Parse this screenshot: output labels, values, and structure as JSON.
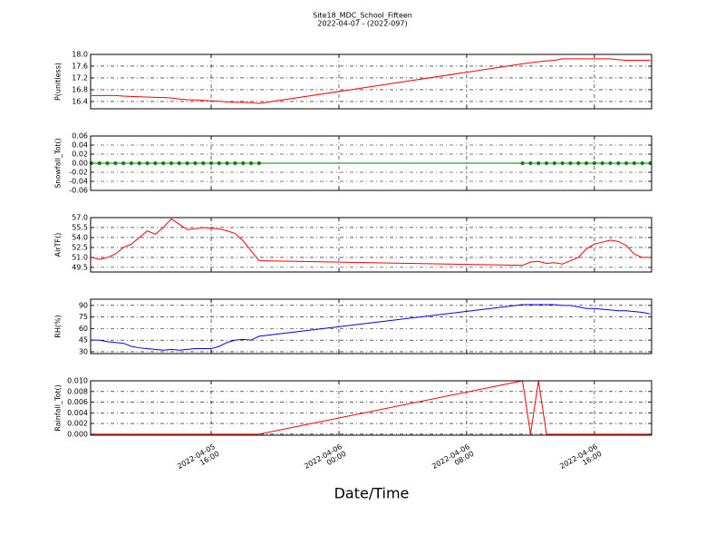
{
  "title": "Site18_MDC_School_Fifteen",
  "subtitle": "2022-04-07 - (2022-097)",
  "chart_data": [
    {
      "type": "line",
      "ylabel": "P(unitless)",
      "color": "#ff0000",
      "grid": true,
      "x": [
        "2022-04-05 08:30",
        "2022-04-05 09:00",
        "2022-04-05 09:30",
        "2022-04-05 10:00",
        "2022-04-05 10:30",
        "2022-04-05 11:00",
        "2022-04-05 11:30",
        "2022-04-05 12:00",
        "2022-04-05 12:30",
        "2022-04-05 13:00",
        "2022-04-05 13:30",
        "2022-04-05 14:00",
        "2022-04-05 14:30",
        "2022-04-05 15:00",
        "2022-04-05 15:30",
        "2022-04-05 16:00",
        "2022-04-05 16:30",
        "2022-04-05 17:00",
        "2022-04-05 17:30",
        "2022-04-05 18:00",
        "2022-04-05 18:30",
        "2022-04-05 19:00",
        "2022-04-06 11:30",
        "2022-04-06 12:00",
        "2022-04-06 12:30",
        "2022-04-06 13:00",
        "2022-04-06 13:30",
        "2022-04-06 14:00",
        "2022-04-06 14:30",
        "2022-04-06 15:00",
        "2022-04-06 15:30",
        "2022-04-06 16:00",
        "2022-04-06 16:30",
        "2022-04-06 17:00",
        "2022-04-06 17:30",
        "2022-04-06 18:00",
        "2022-04-06 18:30",
        "2022-04-06 19:00",
        "2022-04-06 19:30"
      ],
      "values": [
        16.6,
        16.6,
        16.6,
        16.6,
        16.58,
        16.57,
        16.56,
        16.55,
        16.54,
        16.53,
        16.52,
        16.48,
        16.46,
        16.45,
        16.44,
        16.42,
        16.41,
        16.38,
        16.37,
        16.37,
        16.36,
        16.33,
        17.68,
        17.72,
        17.75,
        17.78,
        17.8,
        17.85,
        17.85,
        17.85,
        17.85,
        17.85,
        17.85,
        17.85,
        17.82,
        17.8,
        17.8,
        17.8,
        17.8
      ],
      "ylim": [
        16.15,
        18.0
      ],
      "yticks": [
        16.4,
        16.8,
        17.2,
        17.6,
        {
          "value": 18.0,
          "label": "18.0"
        }
      ]
    },
    {
      "type": "line",
      "ylabel": "Snowfall_Tot()",
      "color": "#008000",
      "markers": true,
      "grid": true,
      "x": [
        "2022-04-05 08:30",
        "2022-04-05 09:00",
        "2022-04-05 09:30",
        "2022-04-05 10:00",
        "2022-04-05 10:30",
        "2022-04-05 11:00",
        "2022-04-05 11:30",
        "2022-04-05 12:00",
        "2022-04-05 12:30",
        "2022-04-05 13:00",
        "2022-04-05 13:30",
        "2022-04-05 14:00",
        "2022-04-05 14:30",
        "2022-04-05 15:00",
        "2022-04-05 15:30",
        "2022-04-05 16:00",
        "2022-04-05 16:30",
        "2022-04-05 17:00",
        "2022-04-05 17:30",
        "2022-04-05 18:00",
        "2022-04-05 18:30",
        "2022-04-05 19:00",
        "2022-04-06 11:30",
        "2022-04-06 12:00",
        "2022-04-06 12:30",
        "2022-04-06 13:00",
        "2022-04-06 13:30",
        "2022-04-06 14:00",
        "2022-04-06 14:30",
        "2022-04-06 15:00",
        "2022-04-06 15:30",
        "2022-04-06 16:00",
        "2022-04-06 16:30",
        "2022-04-06 17:00",
        "2022-04-06 17:30",
        "2022-04-06 18:00",
        "2022-04-06 18:30",
        "2022-04-06 19:00",
        "2022-04-06 19:30"
      ],
      "values": [
        0,
        0,
        0,
        0,
        0,
        0,
        0,
        0,
        0,
        0,
        0,
        0,
        0,
        0,
        0,
        0,
        0,
        0,
        0,
        0,
        0,
        0,
        0,
        0,
        0,
        0,
        0,
        0,
        0,
        0,
        0,
        0,
        0,
        0,
        0,
        0,
        0,
        0,
        0
      ],
      "ylim": [
        -0.06,
        0.06
      ],
      "yticks": [
        {
          "value": -0.06,
          "label": "-0.06"
        },
        {
          "value": -0.04,
          "label": "-0.04"
        },
        {
          "value": -0.02,
          "label": "-0.02"
        },
        {
          "value": 0,
          "label": "0.00"
        },
        0.02,
        0.04,
        0.06
      ]
    },
    {
      "type": "line",
      "ylabel": "AirTF()",
      "color": "#ff0000",
      "grid": true,
      "x": [
        "2022-04-05 08:30",
        "2022-04-05 09:00",
        "2022-04-05 09:30",
        "2022-04-05 10:00",
        "2022-04-05 10:30",
        "2022-04-05 11:00",
        "2022-04-05 11:30",
        "2022-04-05 12:00",
        "2022-04-05 12:30",
        "2022-04-05 13:00",
        "2022-04-05 13:30",
        "2022-04-05 14:00",
        "2022-04-05 14:30",
        "2022-04-05 15:00",
        "2022-04-05 15:30",
        "2022-04-05 16:00",
        "2022-04-05 16:30",
        "2022-04-05 17:00",
        "2022-04-05 17:30",
        "2022-04-05 18:00",
        "2022-04-05 18:30",
        "2022-04-05 19:00",
        "2022-04-06 11:30",
        "2022-04-06 12:00",
        "2022-04-06 12:30",
        "2022-04-06 13:00",
        "2022-04-06 13:30",
        "2022-04-06 14:00",
        "2022-04-06 14:30",
        "2022-04-06 15:00",
        "2022-04-06 15:30",
        "2022-04-06 16:00",
        "2022-04-06 16:30",
        "2022-04-06 17:00",
        "2022-04-06 17:30",
        "2022-04-06 18:00",
        "2022-04-06 18:30",
        "2022-04-06 19:00",
        "2022-04-06 19:30"
      ],
      "values": [
        51.0,
        50.7,
        51.0,
        51.5,
        52.5,
        53.0,
        54.0,
        55.0,
        54.5,
        55.5,
        56.8,
        56.0,
        55.2,
        55.3,
        55.5,
        55.4,
        55.3,
        55.0,
        54.6,
        53.5,
        52.0,
        50.5,
        49.8,
        50.3,
        50.4,
        50.1,
        50.2,
        50.0,
        50.5,
        51.0,
        52.3,
        53.0,
        53.3,
        53.6,
        53.4,
        52.8,
        51.5,
        51.0,
        51.0
      ],
      "ylim": [
        48.8,
        57.0
      ],
      "yticks": [
        49.5,
        {
          "value": 51.0,
          "label": "51.0"
        },
        52.5,
        {
          "value": 54.0,
          "label": "54.0"
        },
        55.5,
        {
          "value": 57.0,
          "label": "57.0"
        }
      ]
    },
    {
      "type": "line",
      "ylabel": "RH(%)",
      "color": "#0000ff",
      "grid": true,
      "x": [
        "2022-04-05 08:30",
        "2022-04-05 09:00",
        "2022-04-05 09:30",
        "2022-04-05 10:00",
        "2022-04-05 10:30",
        "2022-04-05 11:00",
        "2022-04-05 11:30",
        "2022-04-05 12:00",
        "2022-04-05 12:30",
        "2022-04-05 13:00",
        "2022-04-05 13:30",
        "2022-04-05 14:00",
        "2022-04-05 14:30",
        "2022-04-05 15:00",
        "2022-04-05 15:30",
        "2022-04-05 16:00",
        "2022-04-05 16:30",
        "2022-04-05 17:00",
        "2022-04-05 17:30",
        "2022-04-05 18:00",
        "2022-04-05 18:30",
        "2022-04-05 19:00",
        "2022-04-06 11:30",
        "2022-04-06 12:00",
        "2022-04-06 12:30",
        "2022-04-06 13:00",
        "2022-04-06 13:30",
        "2022-04-06 14:00",
        "2022-04-06 14:30",
        "2022-04-06 15:00",
        "2022-04-06 15:30",
        "2022-04-06 16:00",
        "2022-04-06 16:30",
        "2022-04-06 17:00",
        "2022-04-06 17:30",
        "2022-04-06 18:00",
        "2022-04-06 18:30",
        "2022-04-06 19:00",
        "2022-04-06 19:30"
      ],
      "values": [
        45,
        45,
        43,
        42,
        41,
        37,
        35,
        34,
        33,
        32,
        33,
        32,
        33,
        34,
        34,
        34,
        37,
        42,
        45,
        46,
        45,
        50,
        91,
        91,
        91,
        91,
        91,
        90,
        90,
        88,
        86,
        86,
        85,
        84,
        83,
        83,
        82,
        81,
        79
      ],
      "ylim": [
        27.6,
        98
      ],
      "yticks": [
        30,
        45,
        60,
        75,
        90
      ]
    },
    {
      "type": "line",
      "ylabel": "Rainfall_Tot()",
      "color": "#ff0000",
      "grid": true,
      "xlabel": "Date/Time",
      "x": [
        "2022-04-05 08:30",
        "2022-04-05 09:00",
        "2022-04-05 09:30",
        "2022-04-05 10:00",
        "2022-04-05 10:30",
        "2022-04-05 11:00",
        "2022-04-05 11:30",
        "2022-04-05 12:00",
        "2022-04-05 12:30",
        "2022-04-05 13:00",
        "2022-04-05 13:30",
        "2022-04-05 14:00",
        "2022-04-05 14:30",
        "2022-04-05 15:00",
        "2022-04-05 15:30",
        "2022-04-05 16:00",
        "2022-04-05 16:30",
        "2022-04-05 17:00",
        "2022-04-05 17:30",
        "2022-04-05 18:00",
        "2022-04-05 18:30",
        "2022-04-05 19:00",
        "2022-04-06 11:30",
        "2022-04-06 12:00",
        "2022-04-06 12:30",
        "2022-04-06 13:00",
        "2022-04-06 13:30",
        "2022-04-06 14:00",
        "2022-04-06 14:30",
        "2022-04-06 15:00",
        "2022-04-06 15:30",
        "2022-04-06 16:00",
        "2022-04-06 16:30",
        "2022-04-06 17:00",
        "2022-04-06 17:30",
        "2022-04-06 18:00",
        "2022-04-06 18:30",
        "2022-04-06 19:00",
        "2022-04-06 19:30"
      ],
      "values": [
        0,
        0,
        0,
        0,
        0,
        0,
        0,
        0,
        0,
        0,
        0,
        0,
        0,
        0,
        0,
        0,
        0,
        0,
        0,
        0,
        0,
        0,
        0.01,
        0,
        0.01,
        0,
        0,
        0,
        0,
        0,
        0,
        0,
        0,
        0,
        0,
        0,
        0,
        0,
        0
      ],
      "ylim": [
        -0.0002,
        0.01
      ],
      "yticks": [
        {
          "value": 0,
          "label": "0.000"
        },
        0.002,
        0.004,
        0.006,
        0.008,
        {
          "value": 0.01,
          "label": "0.010"
        }
      ],
      "xlim": [
        "2022-04-05 08:27",
        "2022-04-06 19:35"
      ],
      "xticks": [
        {
          "value": "2022-04-05 16:00",
          "label": "2022-04-05\n16:00"
        },
        {
          "value": "2022-04-06 00:00",
          "label": "2022-04-06\n00:00"
        },
        {
          "value": "2022-04-06 08:00",
          "label": "2022-04-06\n08:00"
        },
        {
          "value": "2022-04-06 16:00",
          "label": "2022-04-06\n16:00"
        }
      ]
    }
  ]
}
